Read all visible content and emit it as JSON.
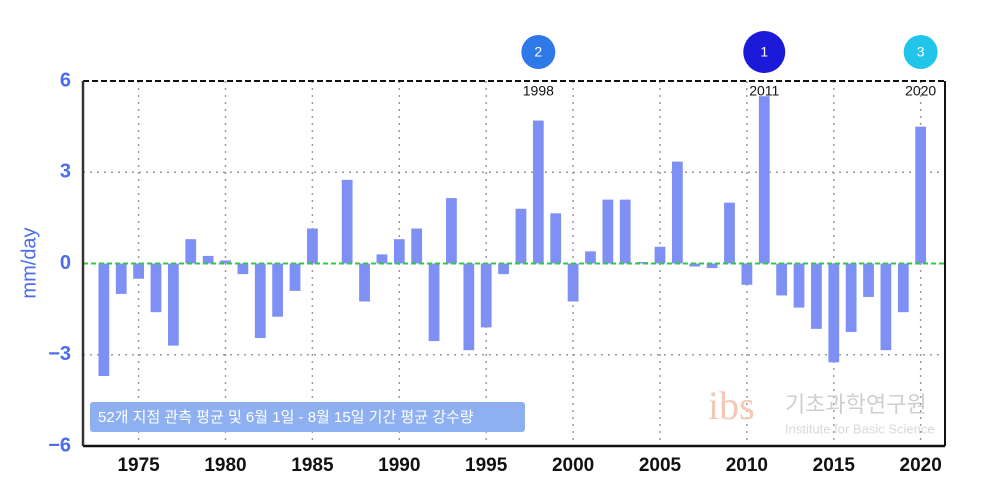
{
  "chart_data": {
    "type": "bar",
    "y_label": "mm/day",
    "legend_text": "52개 지점 관측 평균 및 6월 1일 - 8월 15일 기간 평균 강수량",
    "logo": {
      "mark": "ibs",
      "name": "기초과학연구원",
      "subname": "Institute for Basic Science"
    },
    "color": "#7f90f5",
    "zero_line_color": "#2ecc40",
    "x": [
      1973,
      1974,
      1975,
      1976,
      1977,
      1978,
      1979,
      1980,
      1981,
      1982,
      1983,
      1984,
      1985,
      1986,
      1987,
      1988,
      1989,
      1990,
      1991,
      1992,
      1993,
      1994,
      1995,
      1996,
      1997,
      1998,
      1999,
      2000,
      2001,
      2002,
      2003,
      2004,
      2005,
      2006,
      2007,
      2008,
      2009,
      2010,
      2011,
      2012,
      2013,
      2014,
      2015,
      2016,
      2017,
      2018,
      2019,
      2020
    ],
    "values": [
      -3.7,
      -1.0,
      -0.5,
      -1.6,
      -2.7,
      0.8,
      0.25,
      0.1,
      -0.35,
      -2.45,
      -1.75,
      -0.9,
      1.15,
      0.0,
      2.75,
      -1.25,
      0.3,
      0.8,
      1.15,
      -2.55,
      2.15,
      -2.85,
      -2.1,
      -0.35,
      1.8,
      4.7,
      1.65,
      -1.25,
      0.4,
      2.1,
      2.1,
      0.05,
      0.55,
      3.35,
      -0.1,
      -0.15,
      2.0,
      -0.7,
      5.5,
      -1.05,
      -1.45,
      -2.15,
      -3.25,
      -2.25,
      -1.1,
      -2.85,
      -1.6,
      4.5
    ],
    "xlim": [
      1971.8,
      2021.4
    ],
    "xticks": [
      1975,
      1980,
      1985,
      1990,
      1995,
      2000,
      2005,
      2010,
      2015,
      2020
    ],
    "ylim": [
      -6,
      6
    ],
    "yticks": [
      {
        "value": -6,
        "label": "−6"
      },
      {
        "value": -3,
        "label": "−3"
      },
      0,
      3,
      6
    ],
    "grid": true,
    "annotations": [
      {
        "x": 1998,
        "rank": 2,
        "color": "#2f78e8"
      },
      {
        "x": 2011,
        "rank": 1,
        "color": "#1a1ad8"
      },
      {
        "x": 2020,
        "rank": 3,
        "color": "#22c4ea"
      }
    ]
  }
}
